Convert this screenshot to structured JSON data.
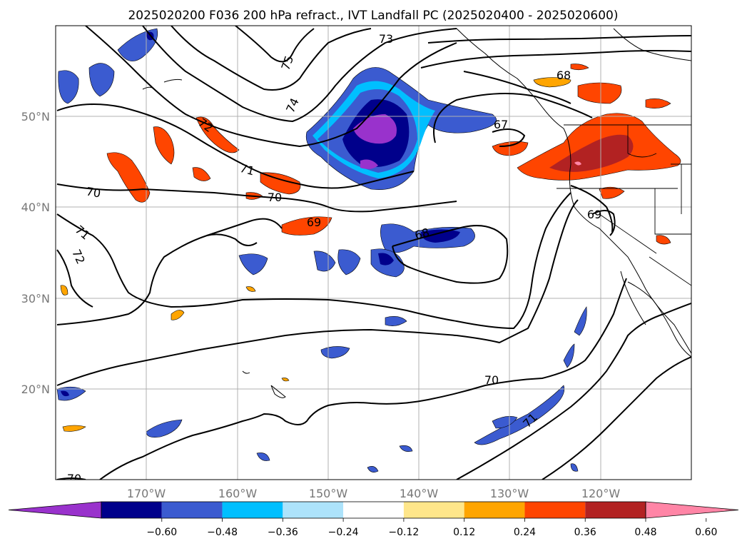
{
  "title": "2025020200 F036 200 hPa refract., IVT Landfall PC (2025020400 - 2025020600)",
  "map": {
    "lon_range": [
      -180,
      -110
    ],
    "lat_range": [
      10,
      60
    ],
    "lon_ticks": [
      {
        "value": -170,
        "label": "170°W"
      },
      {
        "value": -160,
        "label": "160°W"
      },
      {
        "value": -150,
        "label": "150°W"
      },
      {
        "value": -140,
        "label": "140°W"
      },
      {
        "value": -130,
        "label": "130°W"
      },
      {
        "value": -120,
        "label": "120°W"
      }
    ],
    "lat_ticks": [
      {
        "value": 20,
        "label": "20°N"
      },
      {
        "value": 30,
        "label": "30°N"
      },
      {
        "value": 40,
        "label": "40°N"
      },
      {
        "value": 50,
        "label": "50°N"
      }
    ],
    "grid": true
  },
  "contour_labels": [
    "73",
    "75",
    "74",
    "72",
    "71",
    "70",
    "70",
    "69",
    "68",
    "67",
    "68",
    "69",
    "71",
    "72",
    "70",
    "71",
    "70"
  ],
  "colorbar": {
    "ticks": [
      "−0.60",
      "−0.48",
      "−0.36",
      "−0.24",
      "−0.12",
      "0.12",
      "0.24",
      "0.36",
      "0.48",
      "0.60"
    ],
    "colors": [
      "#9932cc",
      "#00008b",
      "#3b5bd0",
      "#00bfff",
      "#ade3fb",
      "#ffffff",
      "#ffe68a",
      "#ffa500",
      "#ff4500",
      "#b22222",
      "#ff85a6"
    ],
    "extend": "both"
  }
}
